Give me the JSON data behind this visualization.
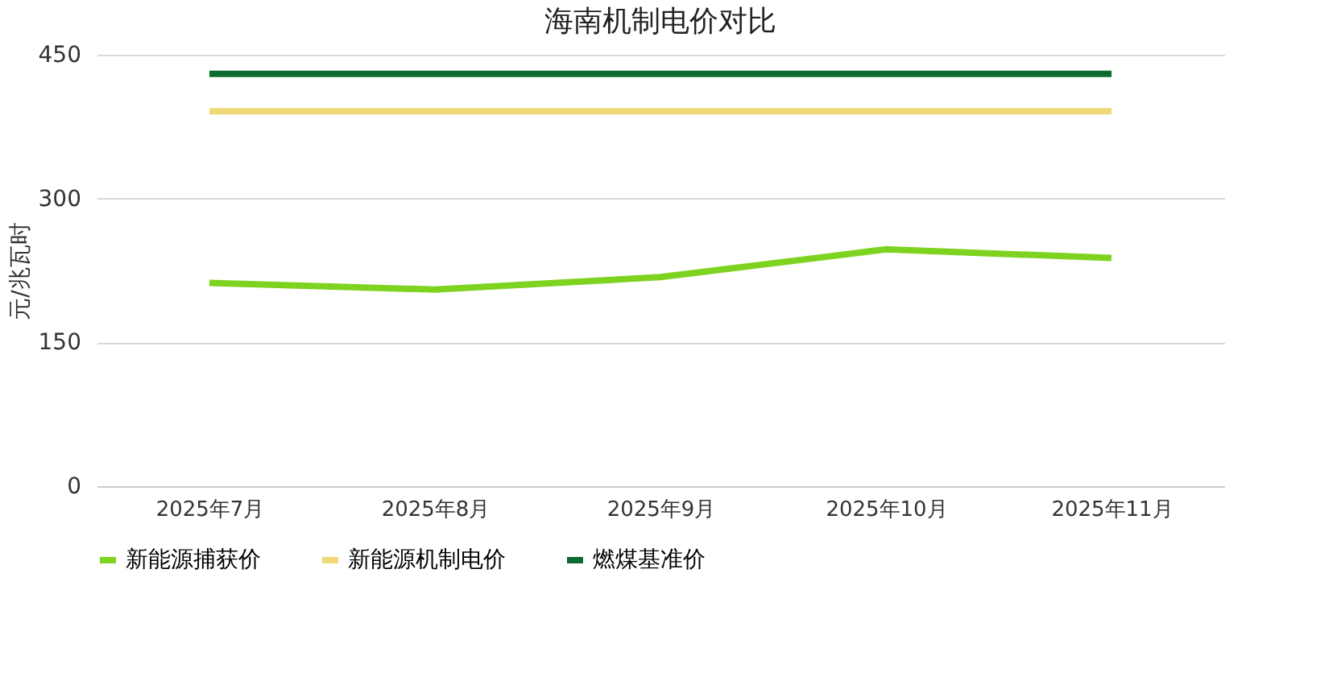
{
  "chart_data": {
    "type": "line",
    "title": "海南机制电价对比",
    "ylabel": "元/兆瓦时",
    "categories": [
      "2025年7月",
      "2025年8月",
      "2025年9月",
      "2025年10月",
      "2025年11月"
    ],
    "series": [
      {
        "name": "新能源捕获价",
        "color": "#7ed321",
        "values": [
          212,
          205,
          218,
          247,
          238
        ]
      },
      {
        "name": "新能源机制电价",
        "color": "#f0d878",
        "values": [
          391,
          391,
          391,
          391,
          391
        ]
      },
      {
        "name": "燃煤基准价",
        "color": "#0b6b2f",
        "values": [
          430,
          430,
          430,
          430,
          430
        ]
      }
    ],
    "ylim": [
      0,
      450
    ],
    "yticks": [
      0,
      150,
      300,
      450
    ],
    "grid": "y",
    "legend": "bottom",
    "marker": "none",
    "line_style": "solid"
  }
}
